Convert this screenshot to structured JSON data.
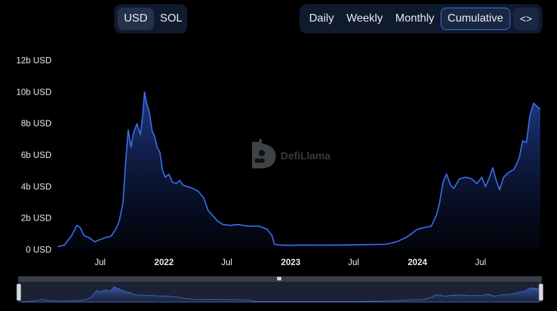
{
  "controls": {
    "currency": [
      {
        "label": "USD",
        "active": true
      },
      {
        "label": "SOL",
        "active": false
      }
    ],
    "periods": [
      {
        "label": "Daily",
        "active": false
      },
      {
        "label": "Weekly",
        "active": false
      },
      {
        "label": "Monthly",
        "active": false
      },
      {
        "label": "Cumulative",
        "active": true
      }
    ],
    "embed_label": "<>"
  },
  "watermark": {
    "text": "DefiLlama",
    "icon": "llama-logo-icon"
  },
  "colors": {
    "line": "#3b6ae6",
    "fill_top": "#2a4fb8",
    "background": "#000000",
    "slider": "#1c2234"
  },
  "chart_data": {
    "type": "area",
    "x_unit": "month",
    "x_tick_labels": [
      {
        "label": "Jul",
        "x": "2021-07-01",
        "bold": false
      },
      {
        "label": "2022",
        "x": "2022-01-01",
        "bold": true
      },
      {
        "label": "Jul",
        "x": "2022-07-01",
        "bold": false
      },
      {
        "label": "2023",
        "x": "2023-01-01",
        "bold": true
      },
      {
        "label": "Jul",
        "x": "2023-07-01",
        "bold": false
      },
      {
        "label": "2024",
        "x": "2024-01-01",
        "bold": true
      },
      {
        "label": "Jul",
        "x": "2024-07-01",
        "bold": false
      }
    ],
    "y_tick_labels": [
      "0 USD",
      "2b USD",
      "4b USD",
      "6b USD",
      "8b USD",
      "10b USD",
      "12b USD"
    ],
    "y_ticks": [
      0,
      2,
      4,
      6,
      8,
      10,
      12
    ],
    "ylim": [
      0,
      12
    ],
    "y_unit": "billion USD",
    "xlim": [
      "2021-03-01",
      "2024-12-20"
    ],
    "grid": false,
    "series": [
      {
        "values": [
          [
            "2021-03-01",
            0.2
          ],
          [
            "2021-03-20",
            0.3
          ],
          [
            "2021-04-10",
            0.9
          ],
          [
            "2021-04-25",
            1.55
          ],
          [
            "2021-05-05",
            1.4
          ],
          [
            "2021-05-15",
            0.9
          ],
          [
            "2021-06-01",
            0.75
          ],
          [
            "2021-06-15",
            0.5
          ],
          [
            "2021-07-01",
            0.65
          ],
          [
            "2021-07-20",
            0.8
          ],
          [
            "2021-08-01",
            0.85
          ],
          [
            "2021-08-15",
            1.3
          ],
          [
            "2021-08-25",
            1.8
          ],
          [
            "2021-09-05",
            3.0
          ],
          [
            "2021-09-12",
            5.4
          ],
          [
            "2021-09-20",
            7.6
          ],
          [
            "2021-09-28",
            6.5
          ],
          [
            "2021-10-05",
            7.4
          ],
          [
            "2021-10-15",
            8.0
          ],
          [
            "2021-10-25",
            7.3
          ],
          [
            "2021-11-01",
            8.6
          ],
          [
            "2021-11-06",
            10.0
          ],
          [
            "2021-11-12",
            9.3
          ],
          [
            "2021-11-20",
            8.7
          ],
          [
            "2021-11-28",
            7.5
          ],
          [
            "2021-12-05",
            7.2
          ],
          [
            "2021-12-12",
            6.5
          ],
          [
            "2021-12-20",
            6.2
          ],
          [
            "2021-12-28",
            5.0
          ],
          [
            "2022-01-05",
            4.6
          ],
          [
            "2022-01-15",
            4.8
          ],
          [
            "2022-01-25",
            4.3
          ],
          [
            "2022-02-05",
            4.2
          ],
          [
            "2022-02-15",
            4.4
          ],
          [
            "2022-02-25",
            4.1
          ],
          [
            "2022-03-10",
            4.0
          ],
          [
            "2022-03-25",
            3.9
          ],
          [
            "2022-04-10",
            3.7
          ],
          [
            "2022-04-25",
            3.3
          ],
          [
            "2022-05-08",
            2.5
          ],
          [
            "2022-05-20",
            2.2
          ],
          [
            "2022-06-05",
            1.8
          ],
          [
            "2022-06-20",
            1.6
          ],
          [
            "2022-07-10",
            1.55
          ],
          [
            "2022-08-01",
            1.6
          ],
          [
            "2022-09-01",
            1.5
          ],
          [
            "2022-10-01",
            1.5
          ],
          [
            "2022-10-25",
            1.3
          ],
          [
            "2022-11-08",
            0.9
          ],
          [
            "2022-11-15",
            0.35
          ],
          [
            "2022-12-01",
            0.3
          ],
          [
            "2023-01-01",
            0.28
          ],
          [
            "2023-02-01",
            0.3
          ],
          [
            "2023-04-01",
            0.29
          ],
          [
            "2023-06-01",
            0.3
          ],
          [
            "2023-08-01",
            0.32
          ],
          [
            "2023-10-01",
            0.35
          ],
          [
            "2023-11-01",
            0.5
          ],
          [
            "2023-12-01",
            0.8
          ],
          [
            "2024-01-01",
            1.3
          ],
          [
            "2024-01-20",
            1.4
          ],
          [
            "2024-02-10",
            1.5
          ],
          [
            "2024-02-25",
            2.2
          ],
          [
            "2024-03-05",
            3.0
          ],
          [
            "2024-03-15",
            4.3
          ],
          [
            "2024-03-25",
            4.8
          ],
          [
            "2024-04-05",
            4.1
          ],
          [
            "2024-04-15",
            3.9
          ],
          [
            "2024-05-01",
            4.5
          ],
          [
            "2024-05-20",
            4.6
          ],
          [
            "2024-06-05",
            4.5
          ],
          [
            "2024-06-20",
            4.2
          ],
          [
            "2024-07-05",
            4.6
          ],
          [
            "2024-07-15",
            4.0
          ],
          [
            "2024-07-25",
            4.5
          ],
          [
            "2024-08-05",
            5.2
          ],
          [
            "2024-08-15",
            4.4
          ],
          [
            "2024-08-25",
            3.8
          ],
          [
            "2024-09-05",
            4.6
          ],
          [
            "2024-09-20",
            4.9
          ],
          [
            "2024-10-05",
            5.1
          ],
          [
            "2024-10-20",
            5.8
          ],
          [
            "2024-10-30",
            6.9
          ],
          [
            "2024-11-10",
            6.8
          ],
          [
            "2024-11-20",
            8.5
          ],
          [
            "2024-12-01",
            9.3
          ],
          [
            "2024-12-10",
            9.1
          ],
          [
            "2024-12-20",
            8.9
          ]
        ]
      }
    ]
  }
}
